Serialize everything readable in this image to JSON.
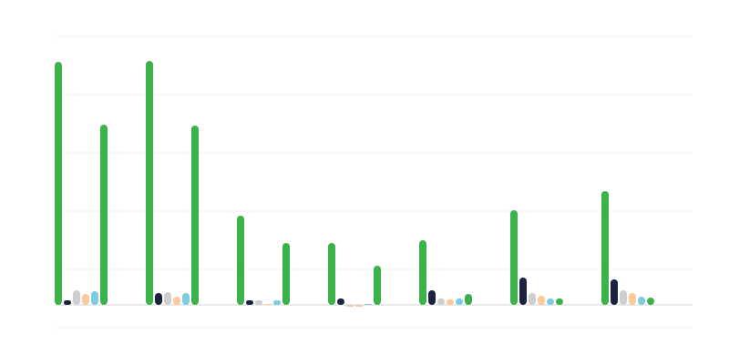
{
  "chart_data": {
    "type": "bar",
    "categories": [
      null,
      null,
      null,
      null,
      null,
      null,
      null
    ],
    "series": [
      {
        "color": "#3bb34a",
        "values": [
          267,
          268,
          98,
          68,
          71,
          104,
          125
        ]
      },
      {
        "color": "#1b2340",
        "values": [
          5,
          13,
          5,
          7,
          16,
          30,
          28
        ]
      },
      {
        "color": "#cfcfcf",
        "values": [
          16,
          14,
          5,
          -2,
          7,
          13,
          16
        ]
      },
      {
        "color": "#fcc99a",
        "values": [
          12,
          9,
          1,
          -2,
          6,
          10,
          13
        ]
      },
      {
        "color": "#7ccde0",
        "values": [
          15,
          13,
          5,
          1,
          7,
          7,
          9
        ]
      },
      {
        "color": "#3bb34a",
        "values": [
          198,
          197,
          68,
          43,
          12,
          7,
          8
        ]
      }
    ],
    "ylim": [
      -25,
      295
    ],
    "yticks": [
      -25,
      39,
      103,
      167,
      231,
      295
    ],
    "grid": true
  }
}
